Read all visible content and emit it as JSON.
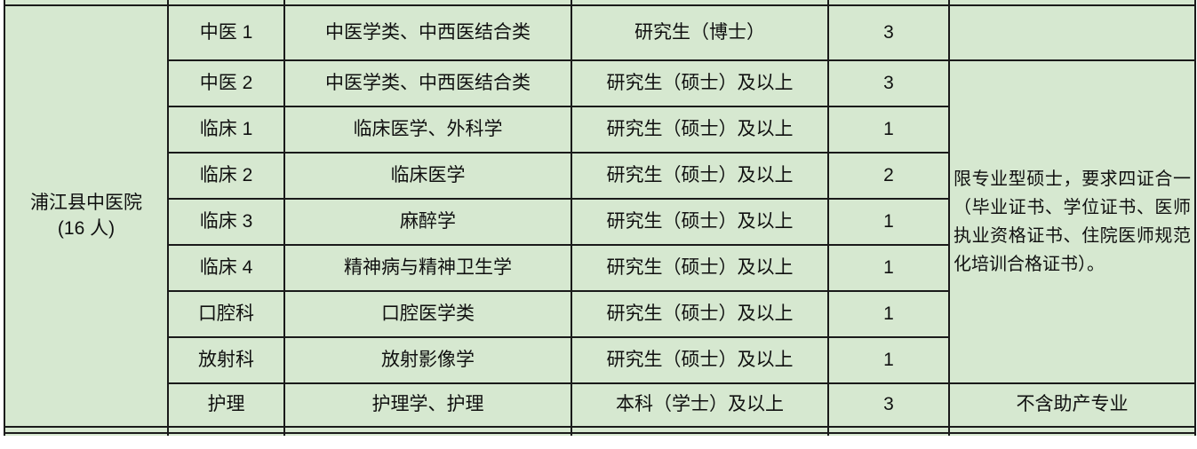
{
  "page": {
    "background": "#ffffff"
  },
  "table": {
    "colors": {
      "cell_bg": "#d6e8d0",
      "border": "#1a1a1a",
      "text": "#101010"
    },
    "hospital": {
      "name": "浦江县中医院",
      "count": "(16 人)"
    },
    "rows": [
      {
        "position": "中医 1",
        "major": "中医学类、中西医结合类",
        "education": "研究生（博士）",
        "count": "3"
      },
      {
        "position": "中医 2",
        "major": "中医学类、中西医结合类",
        "education": "研究生（硕士）及以上",
        "count": "3"
      },
      {
        "position": "临床 1",
        "major": "临床医学、外科学",
        "education": "研究生（硕士）及以上",
        "count": "1"
      },
      {
        "position": "临床 2",
        "major": "临床医学",
        "education": "研究生（硕士）及以上",
        "count": "2"
      },
      {
        "position": "临床 3",
        "major": "麻醉学",
        "education": "研究生（硕士）及以上",
        "count": "1"
      },
      {
        "position": "临床 4",
        "major": "精神病与精神卫生学",
        "education": "研究生（硕士）及以上",
        "count": "1"
      },
      {
        "position": "口腔科",
        "major": "口腔医学类",
        "education": "研究生（硕士）及以上",
        "count": "1"
      },
      {
        "position": "放射科",
        "major": "放射影像学",
        "education": "研究生（硕士）及以上",
        "count": "1"
      },
      {
        "position": "护理",
        "major": "护理学、护理",
        "education": "本科（学士）及以上",
        "count": "3"
      }
    ],
    "notes": {
      "row1": "",
      "merged": "限专业型硕士，要求四证合一（毕业证书、学位证书、医师执业资格证书、住院医师规范化培训合格证书）。",
      "nursing": "不含助产专业"
    }
  }
}
